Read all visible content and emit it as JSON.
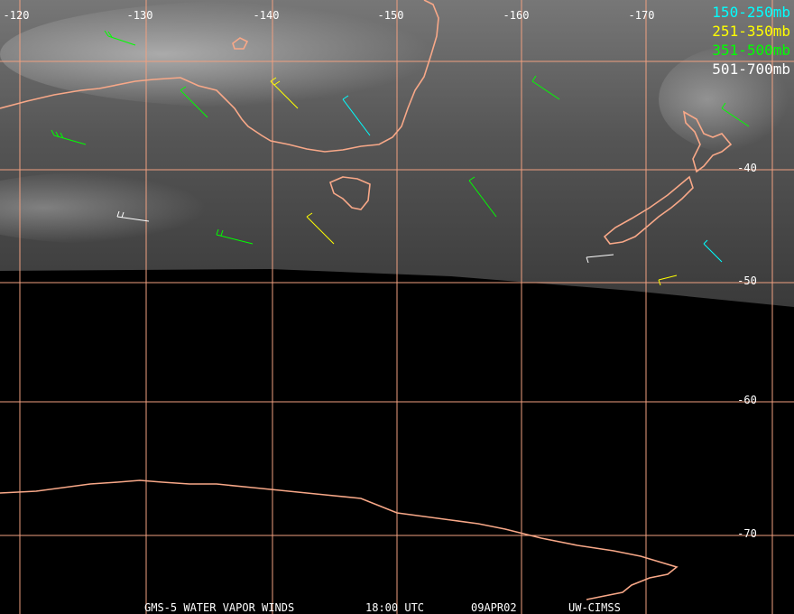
{
  "map": {
    "lon_labels": [
      "-120",
      "-130",
      "-140",
      "-150",
      "-160",
      "-170"
    ],
    "lat_labels": [
      "-40",
      "-50",
      "-60",
      "-70"
    ],
    "legend": [
      {
        "label": "150-250mb",
        "color": "#00ffff"
      },
      {
        "label": "251-350mb",
        "color": "#ffff00"
      },
      {
        "label": "351-500mb",
        "color": "#00ff00"
      },
      {
        "label": "501-700mb",
        "color": "#ffffff"
      }
    ],
    "footer": {
      "product": "GMS-5 WATER VAPOR WINDS",
      "time": "18:00 UTC",
      "date": "09APR02",
      "source": "UW-CIMSS"
    }
  }
}
